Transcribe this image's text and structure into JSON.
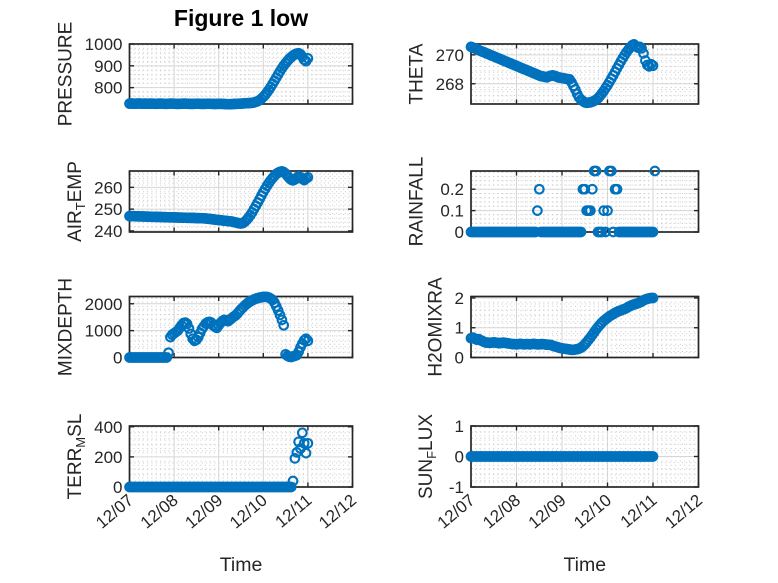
{
  "title": "Figure 1 low",
  "colors": {
    "marker": "#0072BD",
    "axis": "#262626",
    "grid": "#d6d6d6",
    "minor_grid": "#c9c9c9",
    "text": "#262626"
  },
  "x_axis": {
    "label": "Time",
    "lim": [
      7,
      12
    ],
    "ticks": [
      7,
      8,
      9,
      10,
      11,
      12
    ],
    "tick_labels": [
      "12/07",
      "12/08",
      "12/09",
      "12/10",
      "12/11",
      "12/12"
    ],
    "start": 7,
    "step_days": 0.0416667
  },
  "chart_data": [
    {
      "type": "scatter",
      "id": "pressure",
      "name": "PRESSURE",
      "ylabel": "PRESSURE",
      "ylabel_parts": [
        {
          "t": "PRESSURE"
        }
      ],
      "yticks": [
        800,
        900,
        1000
      ],
      "ylim": [
        725,
        1000
      ],
      "show_x_labels": false,
      "xlabel": "",
      "values": [
        727,
        727.5,
        727,
        726.5,
        727,
        727.5,
        727,
        726.5,
        727,
        727,
        726.5,
        727,
        727,
        726.5,
        726,
        726.5,
        727,
        727,
        726.5,
        726,
        726,
        726.5,
        727,
        727,
        726.5,
        726,
        725.5,
        726,
        726.5,
        727,
        727,
        726.5,
        726,
        725.5,
        725.5,
        726,
        726.5,
        726.5,
        726,
        725.5,
        725.5,
        726,
        726.5,
        726.5,
        726,
        725.5,
        725,
        725.5,
        726,
        726,
        725.5,
        725,
        724.5,
        724,
        724,
        724.5,
        725,
        725.5,
        726,
        726.5,
        727,
        727.5,
        728,
        728.5,
        729,
        729.5,
        730.5,
        732,
        734.5,
        738,
        743,
        749.5,
        757.5,
        767,
        778,
        790,
        803,
        817,
        831.5,
        846,
        860.5,
        874.5,
        888,
        900.5,
        912,
        922.5,
        932,
        940,
        947,
        952.5,
        956,
        958,
        953,
        942,
        928,
        921,
        934
      ]
    },
    {
      "type": "scatter",
      "id": "theta",
      "name": "THETA",
      "ylabel": "THETA",
      "ylabel_parts": [
        {
          "t": "THETA"
        }
      ],
      "yticks": [
        268,
        270
      ],
      "ylim": [
        266.6,
        270.75
      ],
      "show_x_labels": false,
      "xlabel": "",
      "values": [
        270.55,
        270.5,
        270.44,
        270.39,
        270.33,
        270.28,
        270.22,
        270.17,
        270.11,
        270.06,
        270.0,
        269.95,
        269.89,
        269.84,
        269.78,
        269.73,
        269.67,
        269.62,
        269.56,
        269.51,
        269.45,
        269.4,
        269.34,
        269.29,
        269.23,
        269.18,
        269.12,
        269.07,
        269.01,
        268.96,
        268.9,
        268.85,
        268.79,
        268.74,
        268.68,
        268.63,
        268.57,
        268.52,
        268.5,
        268.48,
        268.45,
        268.5,
        268.55,
        268.58,
        268.55,
        268.5,
        268.45,
        268.42,
        268.4,
        268.38,
        268.35,
        268.32,
        268.3,
        268.1,
        267.85,
        267.6,
        267.3,
        267.05,
        266.9,
        266.8,
        266.72,
        266.68,
        266.7,
        266.72,
        266.76,
        266.82,
        266.9,
        267.0,
        267.15,
        267.32,
        267.5,
        267.7,
        267.9,
        268.12,
        268.35,
        268.58,
        268.82,
        269.06,
        269.3,
        269.54,
        269.77,
        269.98,
        270.18,
        270.36,
        270.52,
        270.65,
        270.72,
        270.6,
        270.5,
        270.55,
        270.45,
        270.1,
        269.6,
        269.3,
        269.2,
        269.35,
        269.25
      ]
    },
    {
      "type": "scatter",
      "id": "air-temp",
      "name": "AIR_TEMP",
      "ylabel": "AIR_TEMP",
      "ylabel_parts": [
        {
          "t": "AIR"
        },
        {
          "t": "T",
          "sub": true
        },
        {
          "t": "EMP"
        }
      ],
      "yticks": [
        240,
        250,
        260
      ],
      "ylim": [
        239.5,
        267.5
      ],
      "show_x_labels": false,
      "xlabel": "",
      "values": [
        246.8,
        246.78,
        246.75,
        246.73,
        246.7,
        246.68,
        246.65,
        246.63,
        246.6,
        246.58,
        246.55,
        246.52,
        246.5,
        246.48,
        246.45,
        246.42,
        246.4,
        246.38,
        246.35,
        246.32,
        246.3,
        246.27,
        246.25,
        246.22,
        246.2,
        246.17,
        246.15,
        246.12,
        246.1,
        246.07,
        246.05,
        246.02,
        246.0,
        245.97,
        245.95,
        245.92,
        245.9,
        245.87,
        245.85,
        245.82,
        245.8,
        245.7,
        245.6,
        245.5,
        245.4,
        245.3,
        245.2,
        245.1,
        245.0,
        244.9,
        244.8,
        244.7,
        244.6,
        244.5,
        244.4,
        244.3,
        244.1,
        243.9,
        243.7,
        243.5,
        243.4,
        243.6,
        244.2,
        245.0,
        246.0,
        247.2,
        248.5,
        250.0,
        251.5,
        253.0,
        254.6,
        256.2,
        257.8,
        259.3,
        260.7,
        262.0,
        263.2,
        264.3,
        265.3,
        266.1,
        266.7,
        267.1,
        267.3,
        267.0,
        266.3,
        265.3,
        264.3,
        263.5,
        263.2,
        263.6,
        264.4,
        265.0,
        264.6,
        263.9,
        263.3,
        264.0,
        264.6
      ]
    },
    {
      "type": "scatter",
      "id": "rainfall",
      "name": "RAINFALL",
      "ylabel": "RAINFALL",
      "ylabel_parts": [
        {
          "t": "RAINFALL"
        }
      ],
      "yticks": [
        0,
        0.1,
        0.2
      ],
      "ylim": [
        0,
        0.285
      ],
      "show_x_labels": false,
      "xlabel": "",
      "values": [
        0,
        0,
        0,
        0,
        0,
        0,
        0,
        0,
        0,
        0,
        0,
        0,
        0,
        0,
        0,
        0,
        0,
        0,
        0,
        0,
        0,
        0,
        0,
        0,
        0,
        0,
        0,
        0,
        0,
        0,
        0,
        0,
        0,
        0,
        0,
        0.1,
        0.2,
        0,
        0,
        0,
        0,
        0,
        0,
        0,
        0,
        0,
        0,
        0,
        0,
        0,
        0,
        0,
        0,
        0,
        0,
        0,
        0,
        0,
        0,
        0.2,
        0.2,
        0.1,
        0.1,
        0.1,
        0.2,
        0.285,
        0.285,
        0,
        0,
        0,
        0.1,
        0,
        0.1,
        0.285,
        0.285,
        0,
        0.2,
        0.2,
        0,
        0,
        0,
        0,
        0,
        0,
        0,
        0,
        0,
        0,
        0,
        0,
        0,
        0,
        0,
        0,
        0,
        0,
        0,
        0.285
      ]
    },
    {
      "type": "scatter",
      "id": "mixdepth",
      "name": "MIXDEPTH",
      "ylabel": "MIXDEPTH",
      "ylabel_parts": [
        {
          "t": "MIXDEPTH"
        }
      ],
      "yticks": [
        0,
        1000,
        2000
      ],
      "ylim": [
        0,
        2270
      ],
      "show_x_labels": false,
      "xlabel": "",
      "values": [
        0,
        0,
        0,
        0,
        0,
        0,
        0,
        0,
        0,
        0,
        0,
        0,
        0,
        0,
        0,
        0,
        0,
        0,
        0,
        0,
        0,
        180,
        760,
        850,
        900,
        950,
        1000,
        1100,
        1200,
        1280,
        1300,
        1250,
        1080,
        880,
        700,
        620,
        660,
        760,
        910,
        1060,
        1160,
        1260,
        1310,
        1330,
        1300,
        1200,
        1140,
        1100,
        1200,
        1290,
        1360,
        1400,
        1380,
        1350,
        1400,
        1460,
        1520,
        1560,
        1630,
        1710,
        1790,
        1860,
        1930,
        1990,
        2040,
        2090,
        2130,
        2160,
        2190,
        2210,
        2230,
        2240,
        2255,
        2260,
        2250,
        2230,
        2190,
        2140,
        2040,
        1900,
        1750,
        1580,
        1400,
        1200,
        120,
        60,
        30,
        20,
        40,
        60,
        90,
        210,
        380,
        520,
        640,
        700,
        620
      ]
    },
    {
      "type": "scatter",
      "id": "h2omixra",
      "name": "H2OMIXRA",
      "ylabel": "H2OMIXRA",
      "ylabel_parts": [
        {
          "t": "H2OMIXRA"
        }
      ],
      "yticks": [
        0,
        1,
        2
      ],
      "ylim": [
        0,
        2.05
      ],
      "show_x_labels": false,
      "xlabel": "",
      "values": [
        0.65,
        0.67,
        0.63,
        0.6,
        0.62,
        0.58,
        0.55,
        0.52,
        0.5,
        0.5,
        0.49,
        0.5,
        0.51,
        0.5,
        0.49,
        0.48,
        0.49,
        0.5,
        0.49,
        0.48,
        0.47,
        0.46,
        0.45,
        0.45,
        0.44,
        0.45,
        0.46,
        0.45,
        0.44,
        0.45,
        0.45,
        0.44,
        0.45,
        0.46,
        0.45,
        0.44,
        0.44,
        0.45,
        0.45,
        0.44,
        0.43,
        0.43,
        0.42,
        0.4,
        0.38,
        0.36,
        0.34,
        0.32,
        0.31,
        0.3,
        0.29,
        0.28,
        0.27,
        0.26,
        0.26,
        0.27,
        0.28,
        0.3,
        0.33,
        0.38,
        0.44,
        0.51,
        0.59,
        0.67,
        0.76,
        0.85,
        0.94,
        1.02,
        1.1,
        1.17,
        1.23,
        1.28,
        1.33,
        1.38,
        1.42,
        1.46,
        1.5,
        1.53,
        1.56,
        1.58,
        1.61,
        1.63,
        1.66,
        1.7,
        1.73,
        1.76,
        1.78,
        1.8,
        1.82,
        1.85,
        1.88,
        1.92,
        1.95,
        1.97,
        1.99,
        2.0,
        2.0
      ]
    },
    {
      "type": "scatter",
      "id": "terr-msl",
      "name": "TERR_MSL",
      "ylabel": "TERR_MSL",
      "ylabel_parts": [
        {
          "t": "TERR"
        },
        {
          "t": "M",
          "sub": true
        },
        {
          "t": "SL"
        }
      ],
      "yticks": [
        0,
        200,
        400
      ],
      "ylim": [
        0,
        405
      ],
      "show_x_labels": true,
      "xlabel": "Time",
      "values": [
        0,
        0,
        0,
        0,
        0,
        0,
        0,
        0,
        0,
        0,
        0,
        0,
        0,
        0,
        0,
        0,
        0,
        0,
        0,
        0,
        0,
        0,
        0,
        0,
        0,
        0,
        0,
        0,
        0,
        0,
        0,
        0,
        0,
        0,
        0,
        0,
        0,
        0,
        0,
        0,
        0,
        0,
        0,
        0,
        0,
        0,
        0,
        0,
        0,
        0,
        0,
        0,
        0,
        0,
        0,
        0,
        0,
        0,
        0,
        0,
        0,
        0,
        0,
        0,
        0,
        0,
        0,
        0,
        0,
        0,
        0,
        0,
        0,
        0,
        0,
        0,
        0,
        0,
        0,
        0,
        0,
        0,
        0,
        0,
        0,
        0,
        0,
        0,
        40,
        190,
        230,
        300,
        255,
        360,
        290,
        225,
        290
      ]
    },
    {
      "type": "scatter",
      "id": "sun-flux",
      "name": "SUN_FLUX",
      "ylabel": "SUN_FLUX",
      "ylabel_parts": [
        {
          "t": "SUN"
        },
        {
          "t": "F",
          "sub": true
        },
        {
          "t": "LUX"
        }
      ],
      "yticks": [
        -1,
        0,
        1
      ],
      "ylim": [
        -1,
        1
      ],
      "show_x_labels": true,
      "xlabel": "Time",
      "values": [
        0,
        0,
        0,
        0,
        0,
        0,
        0,
        0,
        0,
        0,
        0,
        0,
        0,
        0,
        0,
        0,
        0,
        0,
        0,
        0,
        0,
        0,
        0,
        0,
        0,
        0,
        0,
        0,
        0,
        0,
        0,
        0,
        0,
        0,
        0,
        0,
        0,
        0,
        0,
        0,
        0,
        0,
        0,
        0,
        0,
        0,
        0,
        0,
        0,
        0,
        0,
        0,
        0,
        0,
        0,
        0,
        0,
        0,
        0,
        0,
        0,
        0,
        0,
        0,
        0,
        0,
        0,
        0,
        0,
        0,
        0,
        0,
        0,
        0,
        0,
        0,
        0,
        0,
        0,
        0,
        0,
        0,
        0,
        0,
        0,
        0,
        0,
        0,
        0,
        0,
        0,
        0,
        0,
        0,
        0,
        0,
        0
      ]
    }
  ]
}
